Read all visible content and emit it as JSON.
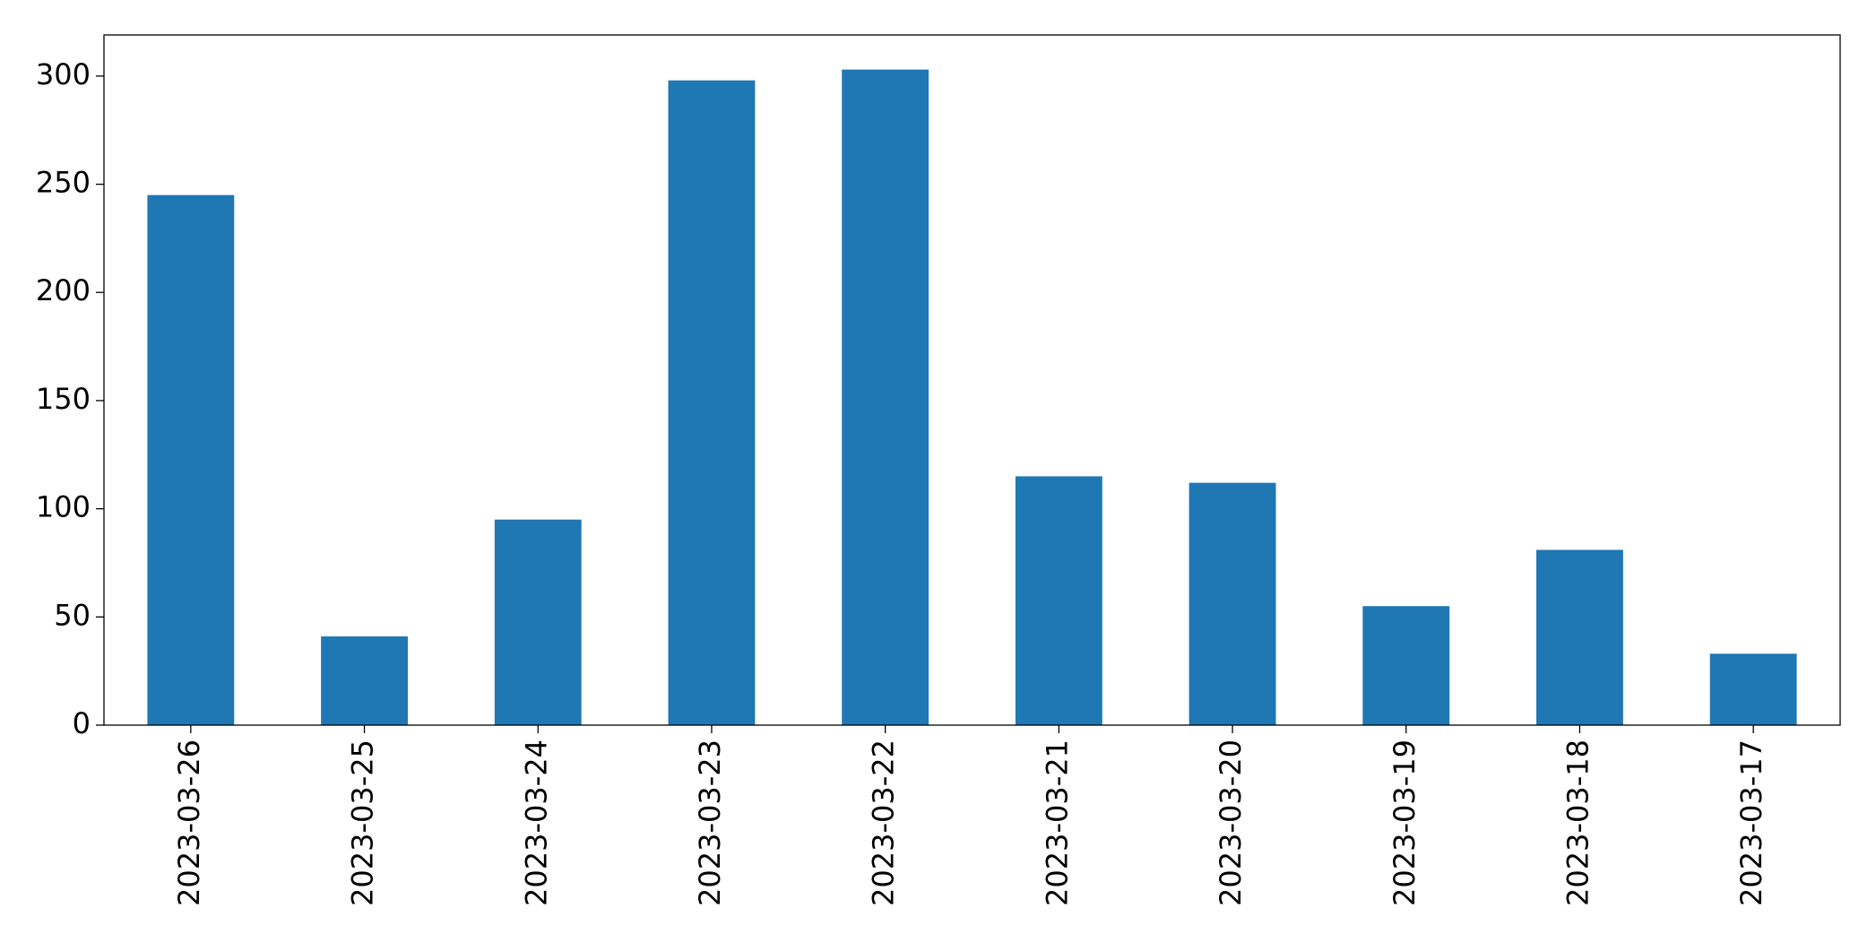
{
  "chart_data": {
    "type": "bar",
    "categories": [
      "2023-03-26",
      "2023-03-25",
      "2023-03-24",
      "2023-03-23",
      "2023-03-22",
      "2023-03-21",
      "2023-03-20",
      "2023-03-19",
      "2023-03-18",
      "2023-03-17"
    ],
    "values": [
      245,
      41,
      95,
      298,
      303,
      115,
      112,
      55,
      81,
      33
    ],
    "color": "#1f77b4",
    "ylim": [
      0,
      319
    ],
    "yticks": [
      0,
      50,
      100,
      150,
      200,
      250,
      300
    ],
    "grid": false
  }
}
